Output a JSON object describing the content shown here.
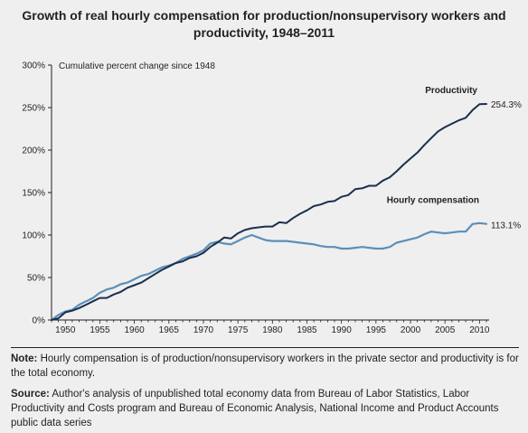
{
  "title_line1": "Growth of real hourly compensation for production/nonsupervisory workers and",
  "title_line2": "productivity, 1948–2011",
  "note_label": "Note:",
  "note_text": "Hourly compensation is of production/nonsupervisory workers in the private sector and productivity is for the total economy.",
  "source_label": "Source:",
  "source_text": "Author's analysis of unpublished total economy data from Bureau of Labor Statistics, Labor Productivity and Costs program and Bureau of Economic Analysis, National Income and Product Accounts public data series",
  "chart_data": {
    "type": "line",
    "title": "Growth of real hourly compensation for production/nonsupervisory workers and productivity, 1948–2011",
    "ylabel": "Cumulative percent change since 1948",
    "xlabel": "",
    "xlim": [
      1948,
      2011
    ],
    "ylim": [
      0,
      300
    ],
    "x_ticks": [
      1950,
      1955,
      1960,
      1965,
      1970,
      1975,
      1980,
      1985,
      1990,
      1995,
      2000,
      2005,
      2010
    ],
    "y_ticks": [
      0,
      50,
      100,
      150,
      200,
      250,
      300
    ],
    "y_tick_labels": [
      "0%",
      "50%",
      "100%",
      "150%",
      "200%",
      "250%",
      "300%"
    ],
    "grid": false,
    "series": [
      {
        "name": "Productivity",
        "color": "#1b2f4a",
        "end_label": "254.3%",
        "x": [
          1948,
          1949,
          1950,
          1951,
          1952,
          1953,
          1954,
          1955,
          1956,
          1957,
          1958,
          1959,
          1960,
          1961,
          1962,
          1963,
          1964,
          1965,
          1966,
          1967,
          1968,
          1969,
          1970,
          1971,
          1972,
          1973,
          1974,
          1975,
          1976,
          1977,
          1978,
          1979,
          1980,
          1981,
          1982,
          1983,
          1984,
          1985,
          1986,
          1987,
          1988,
          1989,
          1990,
          1991,
          1992,
          1993,
          1994,
          1995,
          1996,
          1997,
          1998,
          1999,
          2000,
          2001,
          2002,
          2003,
          2004,
          2005,
          2006,
          2007,
          2008,
          2009,
          2010,
          2011
        ],
        "values": [
          0,
          2,
          9,
          11,
          14,
          18,
          22,
          26,
          26,
          30,
          33,
          38,
          41,
          44,
          49,
          54,
          59,
          63,
          67,
          69,
          73,
          75,
          79,
          86,
          91,
          97,
          96,
          102,
          106,
          108,
          109,
          110,
          110,
          115,
          114,
          120,
          125,
          129,
          134,
          136,
          139,
          140,
          145,
          147,
          154,
          155,
          158,
          158,
          164,
          168,
          175,
          183,
          190,
          197,
          206,
          214,
          222,
          227,
          231,
          235,
          238,
          247,
          254,
          254.3
        ]
      },
      {
        "name": "Hourly compensation",
        "color": "#5b8fb9",
        "end_label": "113.1%",
        "x": [
          1948,
          1949,
          1950,
          1951,
          1952,
          1953,
          1954,
          1955,
          1956,
          1957,
          1958,
          1959,
          1960,
          1961,
          1962,
          1963,
          1964,
          1965,
          1966,
          1967,
          1968,
          1969,
          1970,
          1971,
          1972,
          1973,
          1974,
          1975,
          1976,
          1977,
          1978,
          1979,
          1980,
          1981,
          1982,
          1983,
          1984,
          1985,
          1986,
          1987,
          1988,
          1989,
          1990,
          1991,
          1992,
          1993,
          1994,
          1995,
          1996,
          1997,
          1998,
          1999,
          2000,
          2001,
          2002,
          2003,
          2004,
          2005,
          2006,
          2007,
          2008,
          2009,
          2010,
          2011
        ],
        "values": [
          0,
          6,
          10,
          12,
          18,
          22,
          26,
          32,
          36,
          38,
          42,
          44,
          48,
          52,
          54,
          58,
          62,
          64,
          67,
          72,
          75,
          78,
          82,
          90,
          92,
          90,
          89,
          93,
          97,
          100,
          97,
          94,
          93,
          93,
          93,
          92,
          91,
          90,
          89,
          87,
          86,
          86,
          84,
          84,
          85,
          86,
          85,
          84,
          84,
          86,
          91,
          93,
          95,
          97,
          101,
          104,
          103,
          102,
          103,
          104,
          104,
          113,
          114,
          113.1
        ]
      }
    ]
  }
}
